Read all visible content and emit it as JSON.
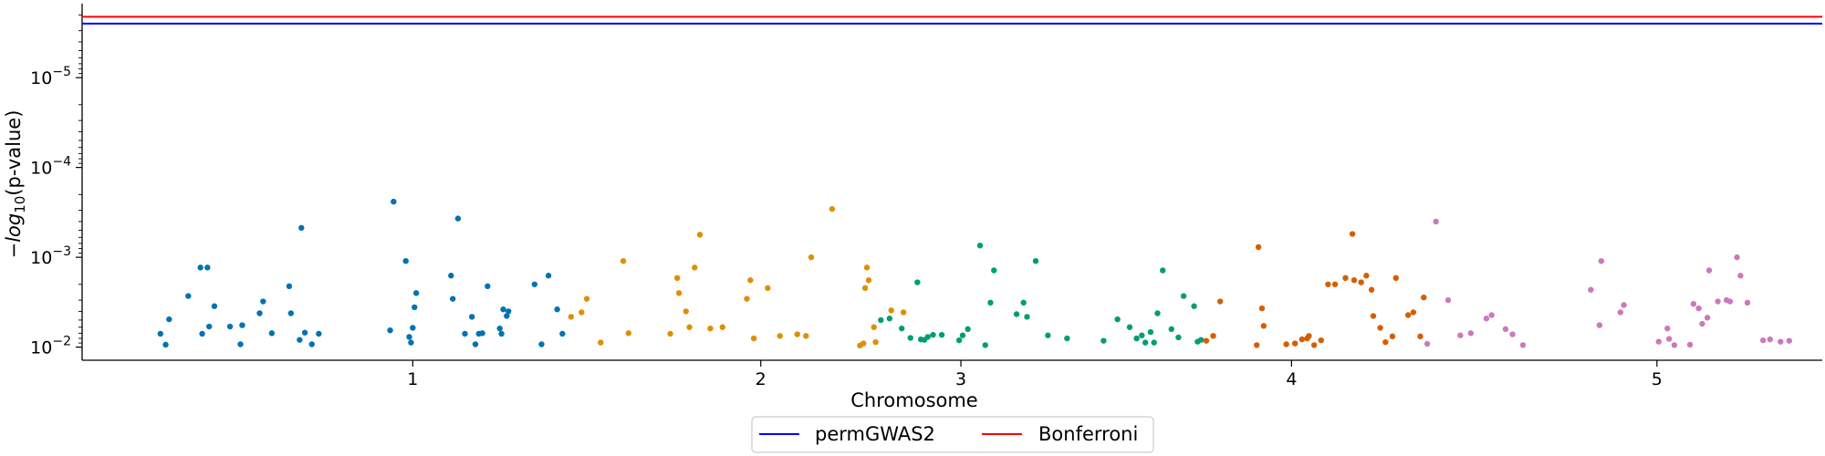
{
  "chart_data": {
    "type": "scatter",
    "title": "",
    "xlabel": "Chromosome",
    "ylabel_parts": [
      "−",
      "log",
      "10",
      "(p-value)"
    ],
    "y_scale": "log (inverted: small p-values plotted higher)",
    "ylim": [
      0.014,
      1.5e-06
    ],
    "y_ticks": [
      {
        "value": 0.01,
        "base": "10",
        "exp": "−2"
      },
      {
        "value": 0.001,
        "base": "10",
        "exp": "−3"
      },
      {
        "value": 0.0001,
        "base": "10",
        "exp": "−4"
      },
      {
        "value": 1e-05,
        "base": "10",
        "exp": "−5"
      }
    ],
    "xlim": [
      0,
      100
    ],
    "x_ticks": [
      {
        "label": "1",
        "pos": 19
      },
      {
        "label": "2",
        "pos": 39
      },
      {
        "label": "3",
        "pos": 50.5
      },
      {
        "label": "4",
        "pos": 69.5
      },
      {
        "label": "5",
        "pos": 90.5
      }
    ],
    "grid": false,
    "legend_placement": "bottom-center, below axis",
    "hlines": [
      {
        "name": "permGWAS2",
        "p": 2.5e-06,
        "color": "#0000ff"
      },
      {
        "name": "Bonferroni",
        "p": 2.1e-06,
        "color": "#ff0000"
      }
    ],
    "series": [
      {
        "chromosome": "1",
        "color": "#0173b2",
        "x": [
          4.5,
          4.8,
          5.0,
          6.1,
          6.8,
          6.9,
          7.2,
          7.3,
          7.6,
          8.5,
          9.1,
          9.2,
          10.2,
          10.4,
          10.9,
          11.9,
          12.0,
          12.5,
          12.6,
          12.8,
          13.2,
          13.6,
          17.7,
          17.9,
          18.6,
          18.8,
          18.9,
          19.0,
          19.1,
          19.2,
          21.2,
          21.3,
          21.6,
          22.0,
          22.4,
          22.6,
          22.8,
          23.0,
          23.3,
          24.0,
          24.1,
          24.2,
          24.4,
          24.5,
          26.0,
          26.4,
          26.8,
          27.3,
          27.6
        ],
        "p": [
          0.0071,
          0.0094,
          0.0049,
          0.0027,
          0.0013,
          0.0071,
          0.0013,
          0.0059,
          0.0035,
          0.0059,
          0.0093,
          0.0057,
          0.0042,
          0.0031,
          0.007,
          0.0021,
          0.0042,
          0.0083,
          0.00047,
          0.0069,
          0.0093,
          0.0071,
          0.0065,
          0.00024,
          0.0011,
          0.0077,
          0.0089,
          0.0061,
          0.0036,
          0.0025,
          0.0016,
          0.0029,
          0.00037,
          0.0071,
          0.0046,
          0.0093,
          0.0071,
          0.007,
          0.0021,
          0.0062,
          0.0071,
          0.0038,
          0.0045,
          0.004,
          0.002,
          0.0093,
          0.0016,
          0.0038,
          0.0071
        ]
      },
      {
        "chromosome": "2",
        "color": "#de8f05",
        "x": [
          28.1,
          28.7,
          29.0,
          29.8,
          31.1,
          31.4,
          33.8,
          34.2,
          34.3,
          34.7,
          34.9,
          35.2,
          35.5,
          36.1,
          36.8,
          38.2,
          38.4,
          38.6,
          39.4,
          40.1,
          41.1,
          41.6,
          41.9,
          43.1,
          44.7,
          44.9,
          45.0,
          45.1,
          45.2,
          45.5,
          45.6,
          46.5,
          47.2
        ],
        "p": [
          0.0046,
          0.0041,
          0.0029,
          0.0089,
          0.0011,
          0.007,
          0.0071,
          0.0017,
          0.0025,
          0.004,
          0.006,
          0.0013,
          0.00056,
          0.0062,
          0.006,
          0.0029,
          0.0018,
          0.008,
          0.0022,
          0.0075,
          0.0072,
          0.0075,
          0.001,
          0.00029,
          0.0096,
          0.0091,
          0.0022,
          0.0013,
          0.0018,
          0.006,
          0.0088,
          0.0039,
          0.0041
        ]
      },
      {
        "chromosome": "3",
        "color": "#029e73",
        "x": [
          45.9,
          46.4,
          47.1,
          47.6,
          48.0,
          48.2,
          48.4,
          48.6,
          48.9,
          49.4,
          50.4,
          50.6,
          50.9,
          51.6,
          51.9,
          52.2,
          52.4,
          53.7,
          54.1,
          54.3,
          54.8,
          55.5,
          56.6,
          58.7,
          59.5,
          60.2,
          60.6,
          60.9,
          61.1,
          61.4,
          61.6,
          61.8,
          62.1,
          62.6,
          63.0,
          63.3,
          63.9,
          64.1,
          64.3
        ],
        "p": [
          0.005,
          0.0048,
          0.0062,
          0.0079,
          0.0019,
          0.0082,
          0.0083,
          0.0077,
          0.0073,
          0.0073,
          0.0084,
          0.0074,
          0.0063,
          0.00074,
          0.0095,
          0.0032,
          0.0014,
          0.0043,
          0.0032,
          0.0046,
          0.0011,
          0.0074,
          0.008,
          0.0085,
          0.0049,
          0.006,
          0.008,
          0.0074,
          0.0089,
          0.0068,
          0.0089,
          0.0042,
          0.0014,
          0.0063,
          0.0078,
          0.0027,
          0.0035,
          0.0087,
          0.0083
        ]
      },
      {
        "chromosome": "4",
        "color": "#d55e00",
        "x": [
          64.6,
          65.0,
          65.4,
          67.5,
          67.6,
          67.8,
          67.9,
          69.2,
          69.7,
          70.1,
          70.4,
          70.5,
          70.8,
          71.2,
          71.6,
          72.0,
          72.6,
          73.0,
          73.1,
          73.5,
          73.8,
          74.1,
          74.2,
          74.6,
          74.9,
          75.3,
          75.5,
          76.2,
          76.5,
          76.9,
          77.1
        ],
        "p": [
          0.0085,
          0.0075,
          0.0031,
          0.0095,
          0.00077,
          0.0037,
          0.0058,
          0.0093,
          0.0091,
          0.0082,
          0.008,
          0.0075,
          0.0095,
          0.0084,
          0.002,
          0.002,
          0.0017,
          0.00055,
          0.0018,
          0.0019,
          0.0016,
          0.0023,
          0.0045,
          0.0061,
          0.0088,
          0.0076,
          0.0017,
          0.0044,
          0.0041,
          0.0076,
          0.0028
        ]
      },
      {
        "chromosome": "5",
        "color": "#cc78bc",
        "x": [
          77.3,
          77.8,
          78.5,
          79.2,
          79.8,
          80.7,
          81.0,
          81.8,
          82.2,
          82.8,
          86.7,
          87.2,
          87.3,
          88.4,
          88.6,
          90.6,
          91.1,
          91.2,
          91.5,
          92.4,
          92.6,
          92.9,
          93.1,
          93.4,
          93.5,
          94.0,
          94.5,
          94.7,
          95.1,
          95.3,
          95.7,
          96.6,
          97.0,
          97.6,
          98.1
        ],
        "p": [
          0.0092,
          0.0004,
          0.003,
          0.0074,
          0.007,
          0.0048,
          0.0044,
          0.0063,
          0.0072,
          0.0095,
          0.0023,
          0.0057,
          0.0011,
          0.0041,
          0.0034,
          0.0087,
          0.0062,
          0.0081,
          0.0095,
          0.0094,
          0.0033,
          0.0037,
          0.0055,
          0.0047,
          0.0014,
          0.0031,
          0.003,
          0.0031,
          0.001,
          0.0016,
          0.0032,
          0.0084,
          0.0082,
          0.0087,
          0.0085
        ]
      }
    ]
  }
}
